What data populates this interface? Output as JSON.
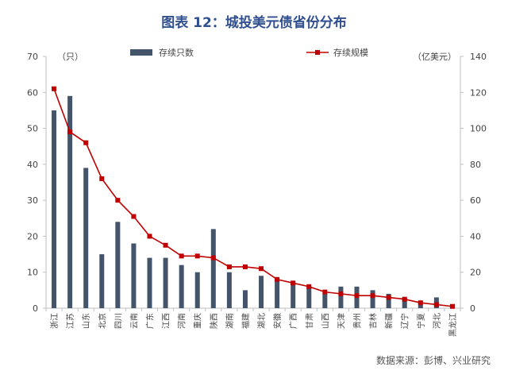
{
  "title": "图表 12：城投美元债省份分布",
  "source": "数据来源：彭博、兴业研究",
  "chart_data": {
    "type": "bar",
    "categories": [
      "浙江",
      "江苏",
      "山东",
      "北京",
      "四川",
      "云南",
      "广东",
      "江西",
      "河南",
      "重庆",
      "陕西",
      "湖南",
      "福建",
      "湖北",
      "安徽",
      "广西",
      "甘肃",
      "山西",
      "天津",
      "贵州",
      "吉林",
      "新疆",
      "辽宁",
      "宁夏",
      "河北",
      "黑龙江"
    ],
    "series": [
      {
        "name": "存续只数",
        "type": "bar",
        "axis": "left",
        "color": "#44546a",
        "values": [
          55,
          59,
          39,
          15,
          24,
          18,
          14,
          14,
          12,
          10,
          22,
          10,
          5,
          9,
          8,
          7,
          6,
          4,
          6,
          6,
          5,
          4,
          3,
          2,
          3,
          1
        ]
      },
      {
        "name": "存续规模",
        "type": "line",
        "axis": "right",
        "color": "#c00000",
        "values": [
          122,
          98,
          92,
          72,
          60,
          51,
          40,
          35,
          29,
          29,
          28,
          23,
          23,
          22,
          16,
          14,
          12,
          9,
          8,
          7,
          7,
          6,
          5,
          3,
          2,
          1
        ]
      }
    ],
    "y_left": {
      "unit_label": "（只）",
      "ylim": [
        0,
        70
      ],
      "ticks": [
        0,
        10,
        20,
        30,
        40,
        50,
        60,
        70
      ]
    },
    "y_right": {
      "unit_label": "（亿美元）",
      "ylim": [
        0,
        140
      ],
      "ticks": [
        0,
        20,
        40,
        60,
        80,
        100,
        120,
        140
      ]
    },
    "legend": {
      "placement": "top"
    },
    "grid": false,
    "colors": {
      "title": "#2f4f8f",
      "bar": "#44546a",
      "line": "#c00000",
      "axis": "#bfbfbf"
    }
  }
}
